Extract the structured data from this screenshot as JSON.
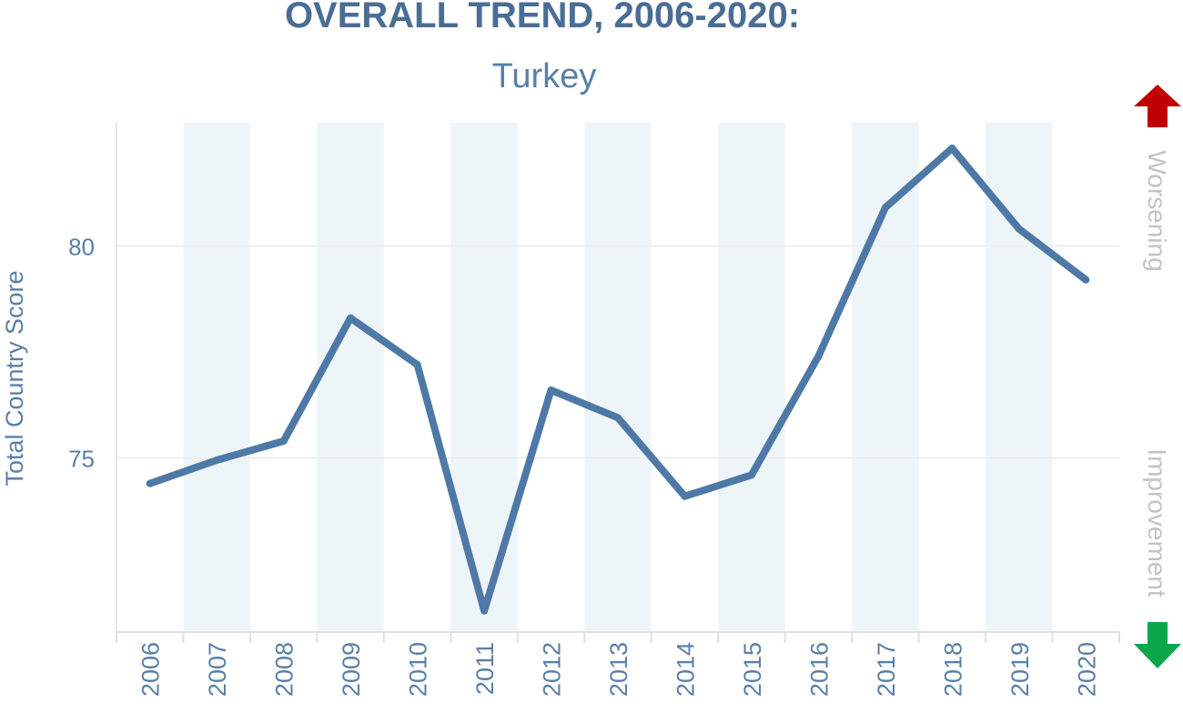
{
  "chart_data": {
    "type": "line",
    "title": "OVERALL TREND, 2006-2020:",
    "subtitle": "Turkey",
    "ylabel": "Total Country Score",
    "xlabel": "",
    "x": [
      "2006",
      "2007",
      "2008",
      "2009",
      "2010",
      "2011",
      "2012",
      "2013",
      "2014",
      "2015",
      "2016",
      "2017",
      "2018",
      "2019",
      "2020"
    ],
    "series": [
      {
        "values": [
          74.4,
          74.95,
          75.4,
          78.3,
          77.2,
          71.4,
          76.6,
          75.95,
          74.1,
          74.6,
          77.4,
          80.9,
          82.3,
          80.4,
          79.2
        ]
      }
    ],
    "ylim": [
      70.9,
      82.9
    ],
    "yticks": [
      75,
      80
    ],
    "grid": "horizontal",
    "legend": "none",
    "direction_labels": {
      "up": "Worsening",
      "down": "Improvement"
    },
    "colors": {
      "line": "#4e79a7",
      "band": "#eef5f9",
      "text": "#5a7fa8",
      "title": "#4a6d96",
      "side_text": "#c3c3c3",
      "grid": "#eeeeee",
      "up_arrow": "#c00000",
      "down_arrow": "#0aa84a"
    },
    "icons": {
      "up": "red-up-arrow-icon",
      "down": "green-down-arrow-icon"
    }
  }
}
